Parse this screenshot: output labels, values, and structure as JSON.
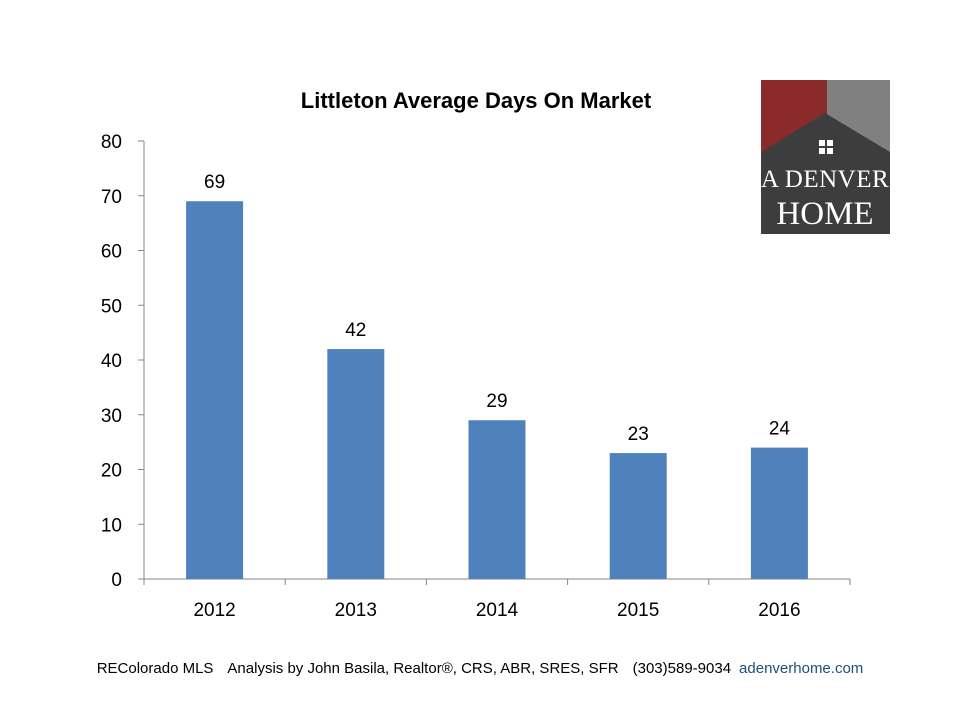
{
  "chart_data": {
    "type": "bar",
    "title": "Littleton Average Days On Market",
    "categories": [
      "2012",
      "2013",
      "2014",
      "2015",
      "2016"
    ],
    "values": [
      69,
      42,
      29,
      23,
      24
    ],
    "data_labels": [
      "69",
      "42",
      "29",
      "23",
      "24"
    ],
    "ylim": [
      0,
      80
    ],
    "yticks": [
      0,
      10,
      20,
      30,
      40,
      50,
      60,
      70,
      80
    ],
    "xlabel": "",
    "ylabel": "",
    "grid": false,
    "bar_color": "#4f81bd"
  },
  "logo": {
    "line1": "A DENVER",
    "line2": "HOME",
    "colors": {
      "red": "#8b2a2a",
      "gray": "#808080",
      "dark": "#3d3d3d",
      "text": "#ffffff"
    }
  },
  "footer": {
    "source": "REColorado MLS",
    "analysis": "Analysis by John Basila, Realtor®, CRS, ABR, SRES, SFR",
    "phone": "(303)589-9034",
    "website": "adenverhome.com",
    "website_color": "#1f4e79"
  }
}
